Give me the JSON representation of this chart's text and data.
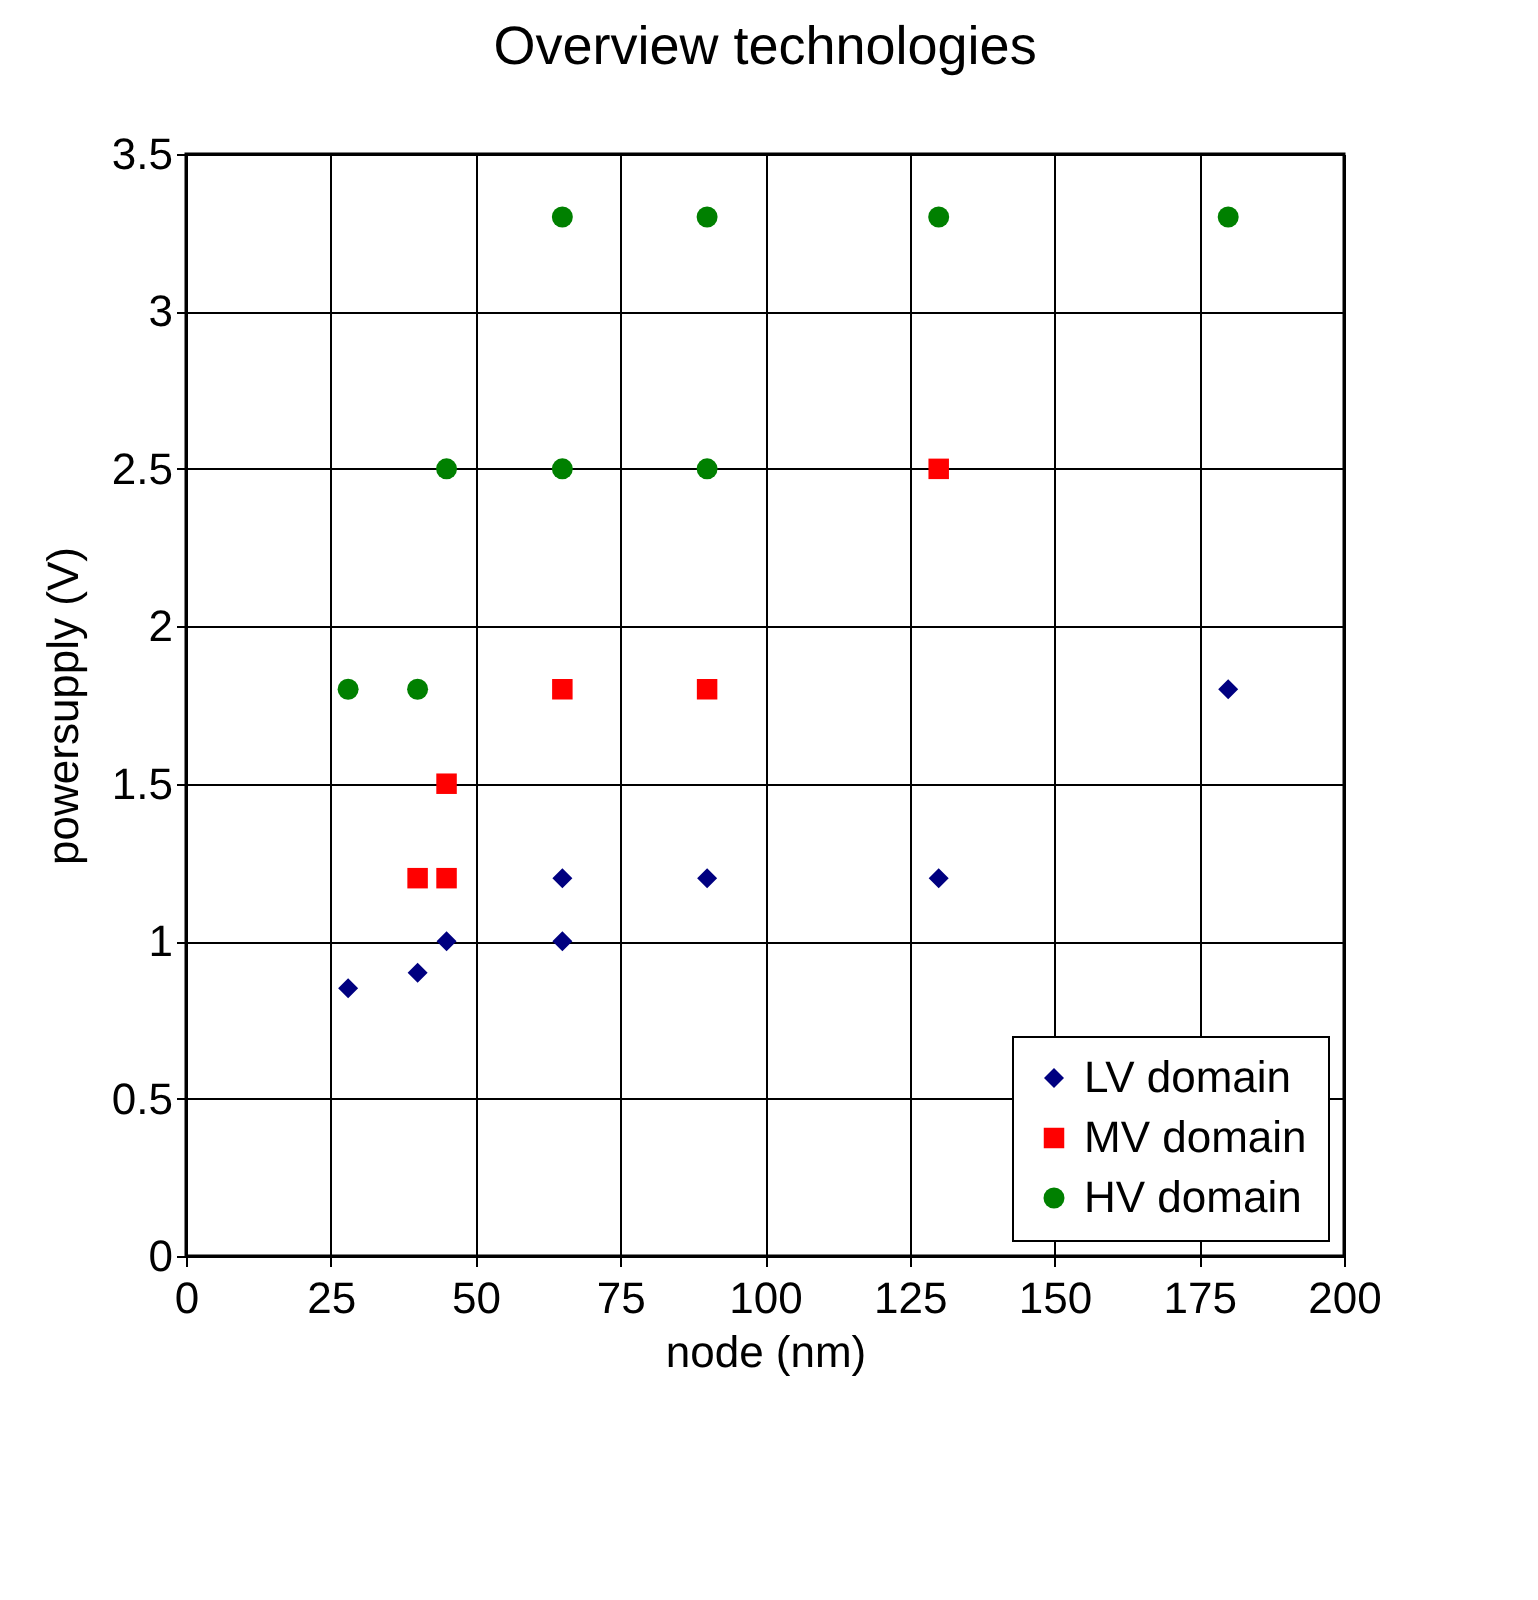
{
  "chart_data": {
    "type": "scatter",
    "title": "Overview technologies",
    "xlabel": "node (nm)",
    "ylabel": "powersupply (V)",
    "xlim": [
      0,
      200
    ],
    "xticks": [
      0,
      25,
      50,
      75,
      100,
      125,
      150,
      175,
      200
    ],
    "ylim": [
      0,
      3.5
    ],
    "yticks": [
      0,
      0.5,
      1,
      1.5,
      2,
      2.5,
      3,
      3.5
    ],
    "grid": true,
    "legend": "bottom right",
    "series": [
      {
        "name": "LV domain",
        "color": "#000080",
        "marker": "diamond",
        "x": [
          28,
          40,
          45,
          65,
          65,
          90,
          130,
          180
        ],
        "values": [
          0.85,
          0.9,
          1.0,
          1.0,
          1.2,
          1.2,
          1.2,
          1.8
        ]
      },
      {
        "name": "MV domain",
        "color": "#ff0000",
        "marker": "square",
        "x": [
          40,
          45,
          45,
          65,
          90,
          130
        ],
        "values": [
          1.2,
          1.2,
          1.5,
          1.8,
          1.8,
          2.5
        ]
      },
      {
        "name": "HV domain",
        "color": "#008000",
        "marker": "circle",
        "x": [
          28,
          40,
          45,
          65,
          65,
          90,
          90,
          130,
          180
        ],
        "values": [
          1.8,
          1.8,
          2.5,
          2.5,
          3.3,
          2.5,
          3.3,
          3.3,
          3.3
        ]
      }
    ]
  }
}
